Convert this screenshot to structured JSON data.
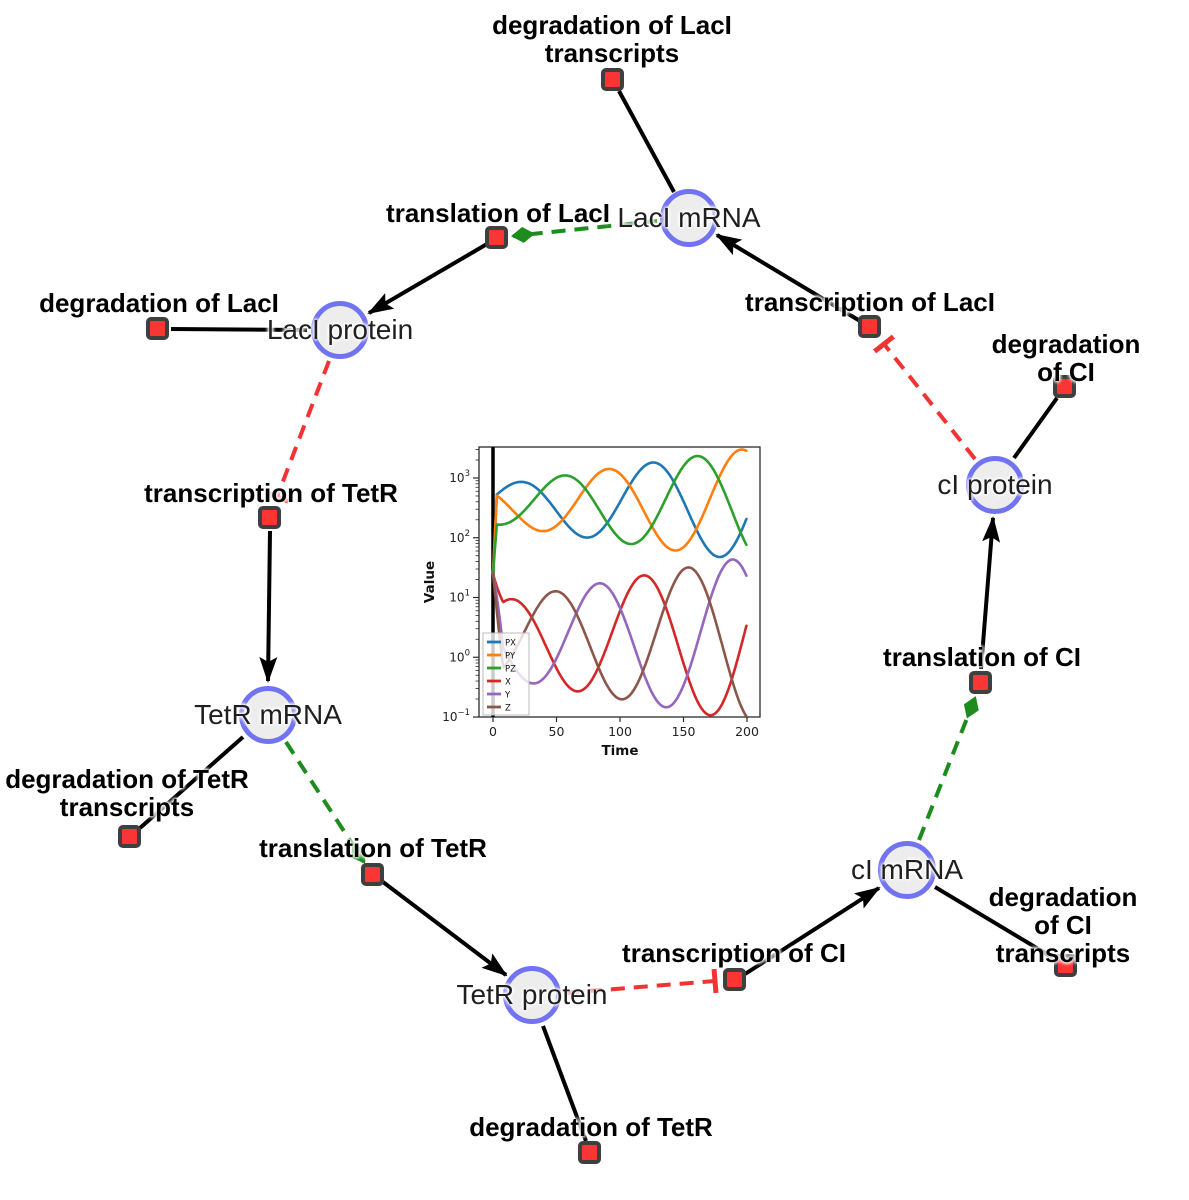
{
  "network": {
    "colors": {
      "species_fill": "#ededed",
      "species_border": "#7273f0",
      "reaction_fill": "#fb3434",
      "reaction_border": "#3f3f3f",
      "product_edge": "#000000",
      "modifier_edge": "#1d8c1d",
      "inhibition_edge": "#f23333"
    },
    "species": [
      {
        "id": "laci_mrna",
        "label": "LacI mRNA"
      },
      {
        "id": "laci_protein",
        "label": "LacI protein"
      },
      {
        "id": "tetr_mrna",
        "label": "TetR mRNA"
      },
      {
        "id": "tetr_protein",
        "label": "TetR protein"
      },
      {
        "id": "ci_mrna",
        "label": "cI mRNA"
      },
      {
        "id": "ci_protein",
        "label": "cI protein"
      }
    ],
    "reactions": [
      {
        "id": "deg_laci_tx",
        "label": "degradation of LacI\ntranscripts"
      },
      {
        "id": "transl_laci",
        "label": "translation of LacI"
      },
      {
        "id": "deg_laci",
        "label": "degradation of LacI"
      },
      {
        "id": "tx_laci",
        "label": "transcription of LacI"
      },
      {
        "id": "deg_ci",
        "label": "degradation of CI"
      },
      {
        "id": "tx_tetr",
        "label": "transcription of TetR"
      },
      {
        "id": "deg_tetr_tx",
        "label": "degradation of TetR\ntranscripts"
      },
      {
        "id": "transl_tetr",
        "label": "translation of TetR"
      },
      {
        "id": "deg_tetr",
        "label": "degradation of TetR"
      },
      {
        "id": "tx_ci",
        "label": "transcription of CI"
      },
      {
        "id": "deg_ci_tx",
        "label": "degradation of CI\ntranscripts"
      },
      {
        "id": "transl_ci",
        "label": "translation of CI"
      }
    ],
    "edges": [
      {
        "from": "laci_mrna",
        "to": "deg_laci_tx",
        "type": "reactant"
      },
      {
        "from": "laci_mrna",
        "to": "transl_laci",
        "type": "modifier"
      },
      {
        "from": "transl_laci",
        "to": "laci_protein",
        "type": "product"
      },
      {
        "from": "laci_protein",
        "to": "deg_laci",
        "type": "reactant"
      },
      {
        "from": "laci_protein",
        "to": "tx_tetr",
        "type": "inhibition"
      },
      {
        "from": "tx_tetr",
        "to": "tetr_mrna",
        "type": "product"
      },
      {
        "from": "tetr_mrna",
        "to": "deg_tetr_tx",
        "type": "reactant"
      },
      {
        "from": "tetr_mrna",
        "to": "transl_tetr",
        "type": "modifier"
      },
      {
        "from": "transl_tetr",
        "to": "tetr_protein",
        "type": "product"
      },
      {
        "from": "tetr_protein",
        "to": "deg_tetr",
        "type": "reactant"
      },
      {
        "from": "tetr_protein",
        "to": "tx_ci",
        "type": "inhibition"
      },
      {
        "from": "tx_ci",
        "to": "ci_mrna",
        "type": "product"
      },
      {
        "from": "ci_mrna",
        "to": "deg_ci_tx",
        "type": "reactant"
      },
      {
        "from": "ci_mrna",
        "to": "transl_ci",
        "type": "modifier"
      },
      {
        "from": "transl_ci",
        "to": "ci_protein",
        "type": "product"
      },
      {
        "from": "ci_protein",
        "to": "deg_ci",
        "type": "reactant"
      },
      {
        "from": "ci_protein",
        "to": "tx_laci",
        "type": "inhibition"
      },
      {
        "from": "tx_laci",
        "to": "laci_mrna",
        "type": "product"
      }
    ]
  },
  "chart_data": {
    "type": "line",
    "xlabel": "Time",
    "ylabel": "Value",
    "y_scale": "log",
    "x_ticks": [
      0,
      50,
      100,
      150,
      200
    ],
    "y_tick_exponents": [
      -1,
      0,
      1,
      2,
      3
    ],
    "xlim": [
      -11,
      210
    ],
    "ylim_log10": [
      -1.02,
      3.52
    ],
    "axvline_x": 0,
    "legend_position": "lower left",
    "legend_entries": [
      "PX",
      "PY",
      "PZ",
      "X",
      "Y",
      "Z"
    ],
    "sample_times": [
      0,
      25,
      50,
      75,
      100,
      125,
      150,
      175,
      200
    ],
    "series": [
      {
        "name": "PX",
        "color": "#1f77b4",
        "samples": [
          464,
          851,
          278,
          101,
          395,
          1811,
          406,
          50,
          219
        ],
        "model": {
          "center": 2.55,
          "amp0": 0.32,
          "amp_slope": 0.0031,
          "period": 105,
          "peak_t": 125,
          "start_log10": 1.4,
          "blend_t": 3
        }
      },
      {
        "name": "PY",
        "color": "#ff7f0e",
        "samples": [
          562,
          181,
          159,
          784,
          1176,
          157,
          70,
          733,
          2806
        ],
        "model": {
          "center": 2.55,
          "amp0": 0.32,
          "amp_slope": 0.0031,
          "period": 105,
          "peak_t": 195,
          "start_log10": 1.4,
          "blend_t": 3
        }
      },
      {
        "name": "PZ",
        "color": "#2ca02c",
        "samples": [
          171,
          290,
          1009,
          565,
          96,
          157,
          1581,
          1224,
          73
        ],
        "model": {
          "center": 2.55,
          "amp0": 0.32,
          "amp_slope": 0.0031,
          "period": 105,
          "peak_t": 160,
          "start_log10": 1.4,
          "blend_t": 3
        }
      },
      {
        "name": "X",
        "color": "#d62728",
        "samples": [
          5.5,
          6.9,
          0.65,
          0.34,
          5.9,
          20.8,
          0.79,
          0.12,
          3.7
        ],
        "model": {
          "center": 0.3,
          "amp0": 0.62,
          "amp_slope": 0.0038,
          "period": 105,
          "peak_t": 118,
          "start_log10": 1.4,
          "blend_t": 8
        }
      },
      {
        "name": "Y",
        "color": "#9467bd",
        "samples": [
          2.9,
          0.42,
          0.96,
          12.7,
          6.7,
          0.25,
          0.34,
          16.4,
          21.8
        ],
        "model": {
          "center": 0.3,
          "amp0": 0.62,
          "amp_slope": 0.0038,
          "period": 105,
          "peak_t": 188,
          "start_log10": 1.4,
          "blend_t": 8
        }
      },
      {
        "name": "Z",
        "color": "#8c564b",
        "samples": [
          0.5,
          2.7,
          12.7,
          1.8,
          0.2,
          1.5,
          29.6,
          4.2,
          0.1
        ],
        "model": {
          "center": 0.3,
          "amp0": 0.62,
          "amp_slope": 0.0038,
          "period": 105,
          "peak_t": 153,
          "start_log10": 1.4,
          "blend_t": 8
        }
      }
    ]
  }
}
